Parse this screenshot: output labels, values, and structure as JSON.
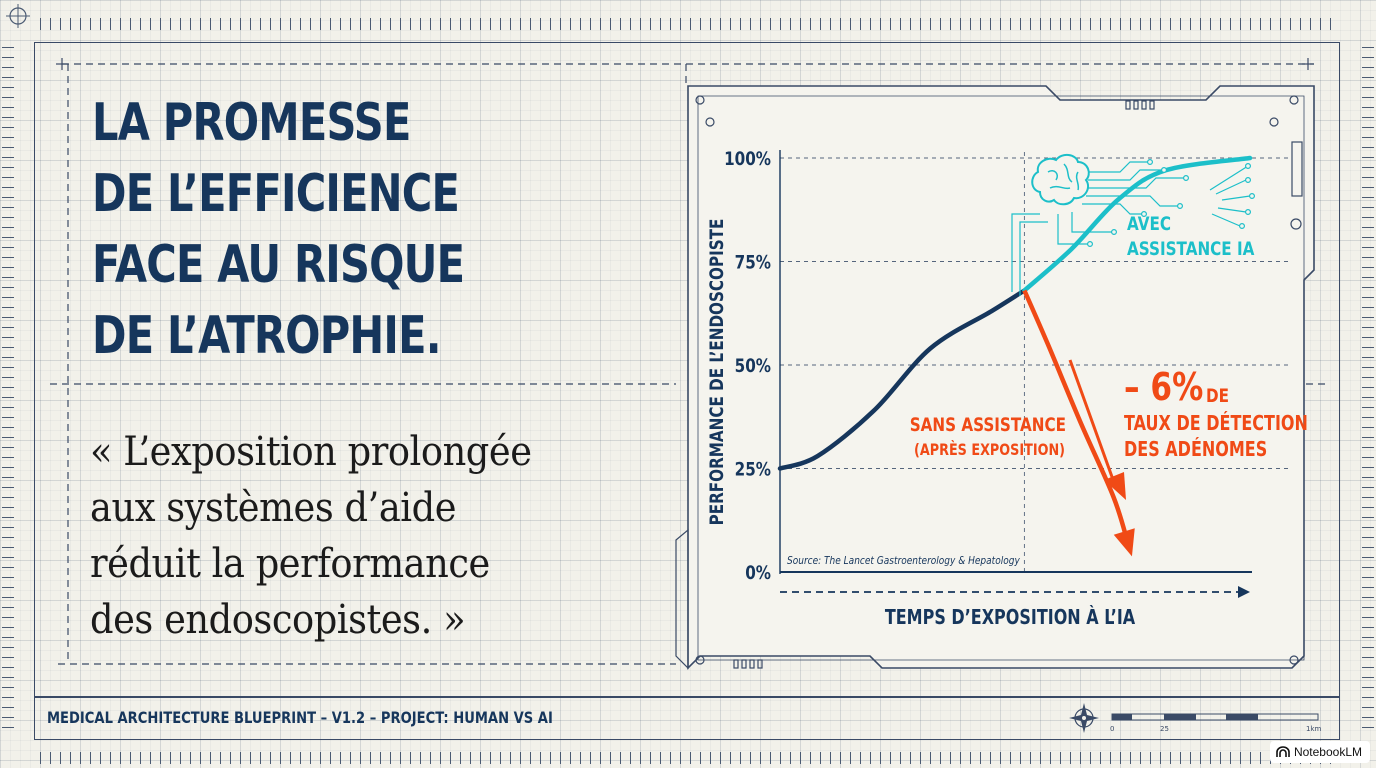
{
  "title_lines": [
    "LA PROMESSE",
    "DE L’EFFICIENCE",
    "FACE AU RISQUE",
    "DE L’ATROPHIE."
  ],
  "quote_lines": [
    "« L’exposition prolongée",
    "aux systèmes d’aide",
    "réduit la performance",
    "des endoscopistes. »"
  ],
  "footer": {
    "text": "MEDICAL ARCHITECTURE BLUEPRINT – V1.2 – PROJECT: HUMAN VS AI",
    "scale_labels": [
      "0",
      "25",
      "1km"
    ]
  },
  "badge": {
    "label": "NotebookLM"
  },
  "chart": {
    "ylabel": "PERFORMANCE DE L’ENDOSCOPISTE",
    "xlabel": "TEMPS D’EXPOSITION À L’IA",
    "source": "Source: The Lancet Gastroenterology & Hepatology",
    "annotations": {
      "ai_line1": "AVEC",
      "ai_line2": "ASSISTANCE IA",
      "no_ai_line1": "SANS ASSISTANCE",
      "no_ai_line2": "(APRÈS EXPOSITION)",
      "drop_value": "– 6%",
      "drop_unit": "DE",
      "drop_line2": "TAUX DE DÉTECTION",
      "drop_line3": "DES ADÉNOMES"
    }
  },
  "colors": {
    "navy": "#16365c",
    "cyan": "#1cbfc9",
    "orange": "#f04a16"
  },
  "chart_data": {
    "type": "line",
    "xlabel": "TEMPS D’EXPOSITION À L’IA",
    "ylabel": "PERFORMANCE DE L’ENDOSCOPISTE",
    "yticks": [
      "0%",
      "25%",
      "50%",
      "75%",
      "100%"
    ],
    "ylim": [
      0,
      100
    ],
    "xlim": [
      0,
      1
    ],
    "grid": true,
    "series": [
      {
        "name": "",
        "color": "#16365c",
        "points": [
          [
            0,
            25
          ],
          [
            0.08,
            28
          ],
          [
            0.2,
            39
          ],
          [
            0.32,
            54
          ],
          [
            0.45,
            63
          ],
          [
            0.52,
            68
          ]
        ]
      },
      {
        "name": "AVEC ASSISTANCE IA",
        "color": "#1cbfc9",
        "points": [
          [
            0.52,
            68
          ],
          [
            0.62,
            78
          ],
          [
            0.72,
            90
          ],
          [
            0.82,
            97
          ],
          [
            1.0,
            100
          ]
        ]
      },
      {
        "name": "SANS ASSISTANCE (APRÈS EXPOSITION)",
        "color": "#f04a16",
        "points": [
          [
            0.52,
            68
          ],
          [
            0.57,
            55
          ],
          [
            0.64,
            36
          ],
          [
            0.71,
            18
          ],
          [
            0.74,
            7
          ]
        ]
      }
    ]
  }
}
